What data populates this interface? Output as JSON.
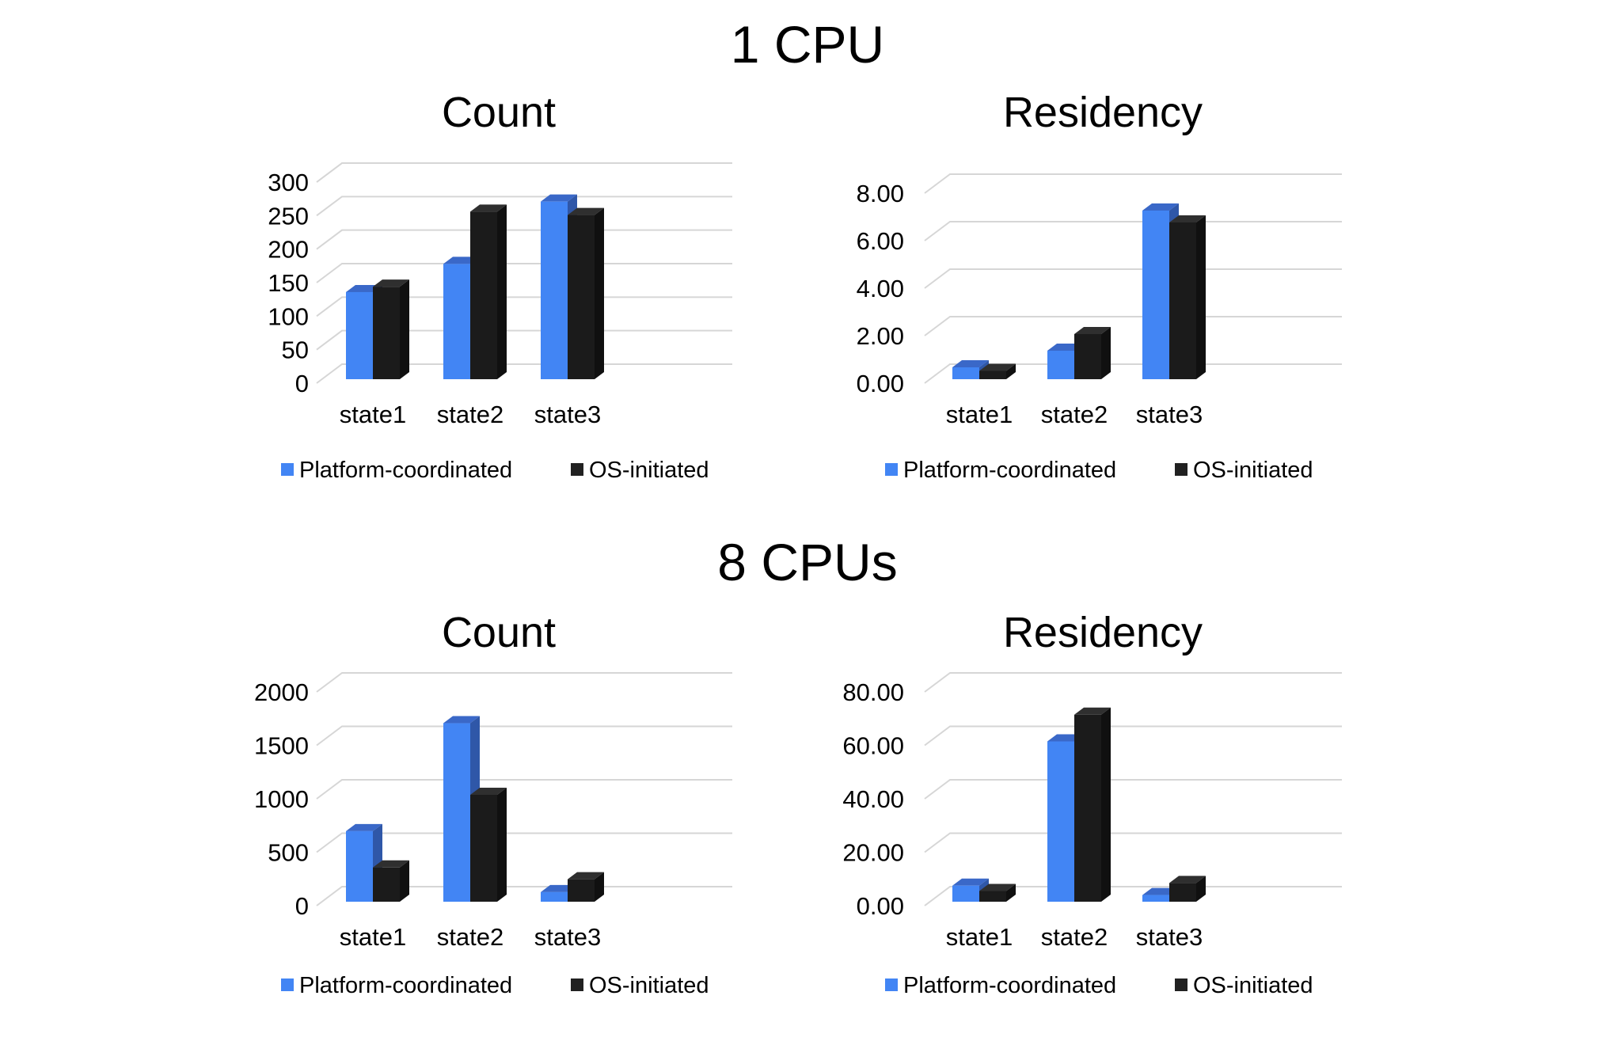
{
  "page": {
    "background": "#ffffff",
    "text_color": "#000000",
    "gridline_color": "#d6d6d6"
  },
  "sections": [
    {
      "heading": "1 CPU"
    },
    {
      "heading": "8 CPUs"
    }
  ],
  "legend": {
    "items": [
      {
        "name": "Platform-coordinated",
        "color": "#4285f4"
      },
      {
        "name": "OS-initiated",
        "color": "#212121"
      }
    ]
  },
  "series_style": {
    "platform": {
      "front": "#4285f4",
      "top": "#3a68c8",
      "side": "#2f57a8"
    },
    "os": {
      "front": "#1b1b1b",
      "top": "#2f2f2f",
      "side": "#101010"
    }
  },
  "chart_data": [
    {
      "id": "cpu1-count",
      "type": "bar",
      "style": "3d-column",
      "section": "1 CPU",
      "title": "Count",
      "xlabel": "",
      "ylabel": "",
      "categories": [
        "state1",
        "state2",
        "state3"
      ],
      "series": [
        {
          "name": "Platform-coordinated",
          "values": [
            130,
            172,
            265
          ]
        },
        {
          "name": "OS-initiated",
          "values": [
            138,
            250,
            245
          ]
        }
      ],
      "ylim": [
        0,
        300
      ],
      "ytick_step": 50,
      "ytick_labels": [
        "0",
        "50",
        "100",
        "150",
        "200",
        "250",
        "300"
      ],
      "grid": true,
      "legend_position": "bottom"
    },
    {
      "id": "cpu1-residency",
      "type": "bar",
      "style": "3d-column",
      "section": "1 CPU",
      "title": "Residency",
      "xlabel": "",
      "ylabel": "",
      "categories": [
        "state1",
        "state2",
        "state3"
      ],
      "series": [
        {
          "name": "Platform-coordinated",
          "values": [
            0.5,
            1.2,
            7.1
          ]
        },
        {
          "name": "OS-initiated",
          "values": [
            0.35,
            1.9,
            6.6
          ]
        }
      ],
      "ylim": [
        0,
        8
      ],
      "ytick_step": 2,
      "ytick_labels": [
        "0.00",
        "2.00",
        "4.00",
        "6.00",
        "8.00"
      ],
      "grid": true,
      "legend_position": "bottom"
    },
    {
      "id": "cpu8-count",
      "type": "bar",
      "style": "3d-column",
      "section": "8 CPUs",
      "title": "Count",
      "xlabel": "",
      "ylabel": "",
      "categories": [
        "state1",
        "state2",
        "state3"
      ],
      "series": [
        {
          "name": "Platform-coordinated",
          "values": [
            660,
            1670,
            90
          ]
        },
        {
          "name": "OS-initiated",
          "values": [
            320,
            1000,
            210
          ]
        }
      ],
      "ylim": [
        0,
        2000
      ],
      "ytick_step": 500,
      "ytick_labels": [
        "0",
        "500",
        "1000",
        "1500",
        "2000"
      ],
      "grid": true,
      "legend_position": "bottom"
    },
    {
      "id": "cpu8-residency",
      "type": "bar",
      "style": "3d-column",
      "section": "8 CPUs",
      "title": "Residency",
      "xlabel": "",
      "ylabel": "",
      "categories": [
        "state1",
        "state2",
        "state3"
      ],
      "series": [
        {
          "name": "Platform-coordinated",
          "values": [
            6,
            60,
            2.5
          ]
        },
        {
          "name": "OS-initiated",
          "values": [
            4,
            70,
            7
          ]
        }
      ],
      "ylim": [
        0,
        80
      ],
      "ytick_step": 20,
      "ytick_labels": [
        "0.00",
        "20.00",
        "40.00",
        "60.00",
        "80.00"
      ],
      "grid": true,
      "legend_position": "bottom"
    }
  ]
}
